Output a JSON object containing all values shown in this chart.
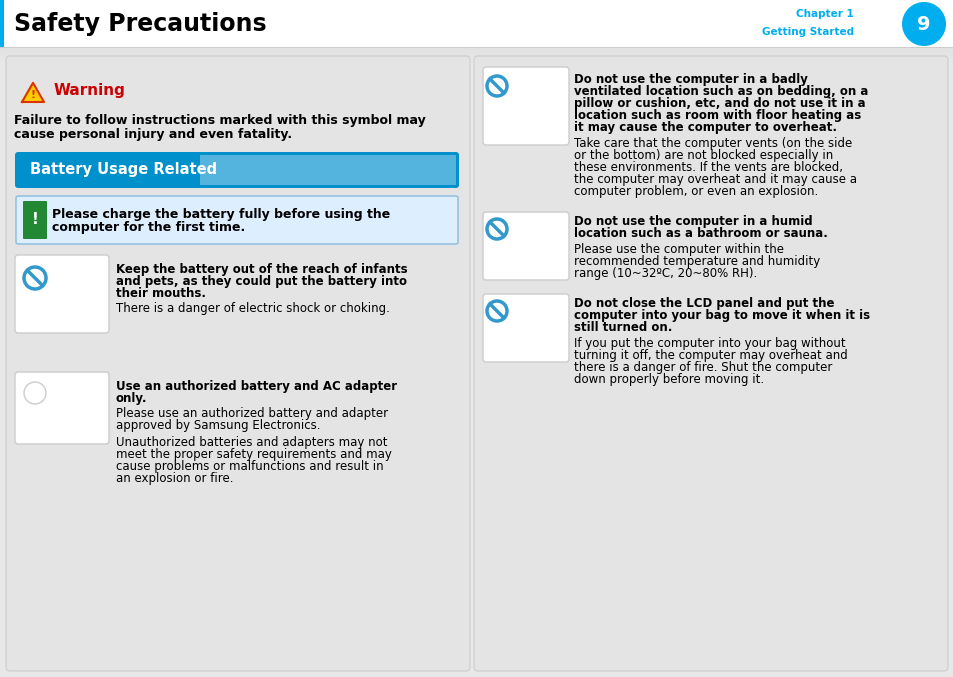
{
  "title": "Safety Precautions",
  "chapter_label": "Chapter 1",
  "chapter_sub": "Getting Started",
  "page_num": "9",
  "page_bg": "#e8e8e8",
  "warning_title": "Warning",
  "warning_color": "#cc0000",
  "warning_text_line1": "Failure to follow instructions marked with this symbol may",
  "warning_text_line2": "cause personal injury and even fatality.",
  "section_title": "Battery Usage Related",
  "notice_text_line1": "Please charge the battery fully before using the",
  "notice_text_line2": "computer for the first time.",
  "left_items": [
    {
      "bold_lines": [
        "Keep the battery out of the reach of infants",
        "and pets, as they could put the battery into",
        "their mouths."
      ],
      "normal_lines": [
        "There is a danger of electric shock or choking."
      ]
    },
    {
      "bold_lines": [
        "Use an authorized battery and AC adapter",
        "only."
      ],
      "normal_lines": [
        "Please use an authorized battery and adapter",
        "approved by Samsung Electronics.",
        "",
        "Unauthorized batteries and adapters may not",
        "meet the proper safety requirements and may",
        "cause problems or malfunctions and result in",
        "an explosion or fire."
      ]
    }
  ],
  "right_items": [
    {
      "bold_lines": [
        "Do not use the computer in a badly",
        "ventilated location such as on bedding, on a",
        "pillow or cushion, etc, and do not use it in a",
        "location such as room with floor heating as",
        "it may cause the computer to overheat."
      ],
      "normal_lines": [
        "Take care that the computer vents (on the side",
        "or the bottom) are not blocked especially in",
        "these environments. If the vents are blocked,",
        "the computer may overheat and it may cause a",
        "computer problem, or even an explosion."
      ]
    },
    {
      "bold_lines": [
        "Do not use the computer in a humid",
        "location such as a bathroom or sauna."
      ],
      "normal_lines": [
        "Please use the computer within the",
        "recommended temperature and humidity",
        "range (10~32ºC, 20~80% RH)."
      ]
    },
    {
      "bold_lines": [
        "Do not close the LCD panel and put the",
        "computer into your bag to move it when it is",
        "still turned on."
      ],
      "normal_lines": [
        "If you put the computer into your bag without",
        "turning it off, the computer may overheat and",
        "there is a danger of fire. Shut the computer",
        "down properly before moving it."
      ]
    }
  ]
}
